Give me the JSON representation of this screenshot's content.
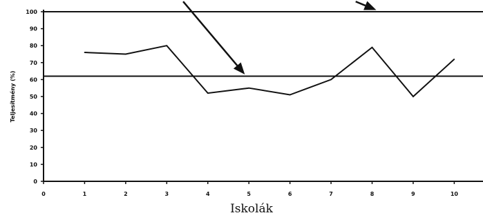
{
  "chart_data": {
    "type": "line",
    "title": "",
    "xlabel": "Iskolák",
    "ylabel": "Teljesítmény (%)",
    "xlim": [
      0,
      10.7
    ],
    "ylim": [
      0,
      100
    ],
    "x_ticks": [
      0,
      1,
      2,
      3,
      4,
      5,
      6,
      7,
      8,
      9,
      10
    ],
    "y_ticks": [
      0,
      10,
      20,
      30,
      40,
      50,
      60,
      70,
      80,
      90,
      100
    ],
    "grid": false,
    "series": [
      {
        "x": [
          1,
          2,
          3,
          4,
          5,
          6,
          7,
          8,
          9,
          10
        ],
        "values": [
          76,
          75,
          80,
          52,
          55,
          51,
          60,
          79,
          50,
          72
        ]
      }
    ],
    "reference_lines": [
      {
        "y": 100
      },
      {
        "y": 62
      }
    ],
    "annotations": [
      {
        "type": "arrow",
        "from": [
          3.4,
          106
        ],
        "to": [
          4.9,
          63
        ]
      },
      {
        "type": "arrow",
        "from": [
          7.6,
          106
        ],
        "to": [
          8.1,
          101
        ]
      }
    ]
  }
}
